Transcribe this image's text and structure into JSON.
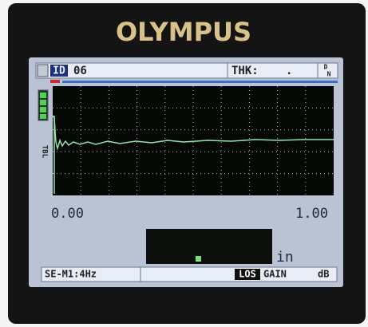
{
  "header": {
    "brand": "OLYMPUS"
  },
  "top_bar": {
    "id_label": "ID",
    "id_value": "06",
    "thk_label": "THK:",
    "thk_value": ".",
    "mode_top": "D",
    "mode_bottom": "N"
  },
  "side_label": "TBL",
  "axis": {
    "left": "0.00",
    "right": "1.00"
  },
  "unit": "in",
  "status_bar": {
    "setup": "SE-M1:4Hz",
    "los": "LOS",
    "gain": "GAIN",
    "db": "dB"
  }
}
